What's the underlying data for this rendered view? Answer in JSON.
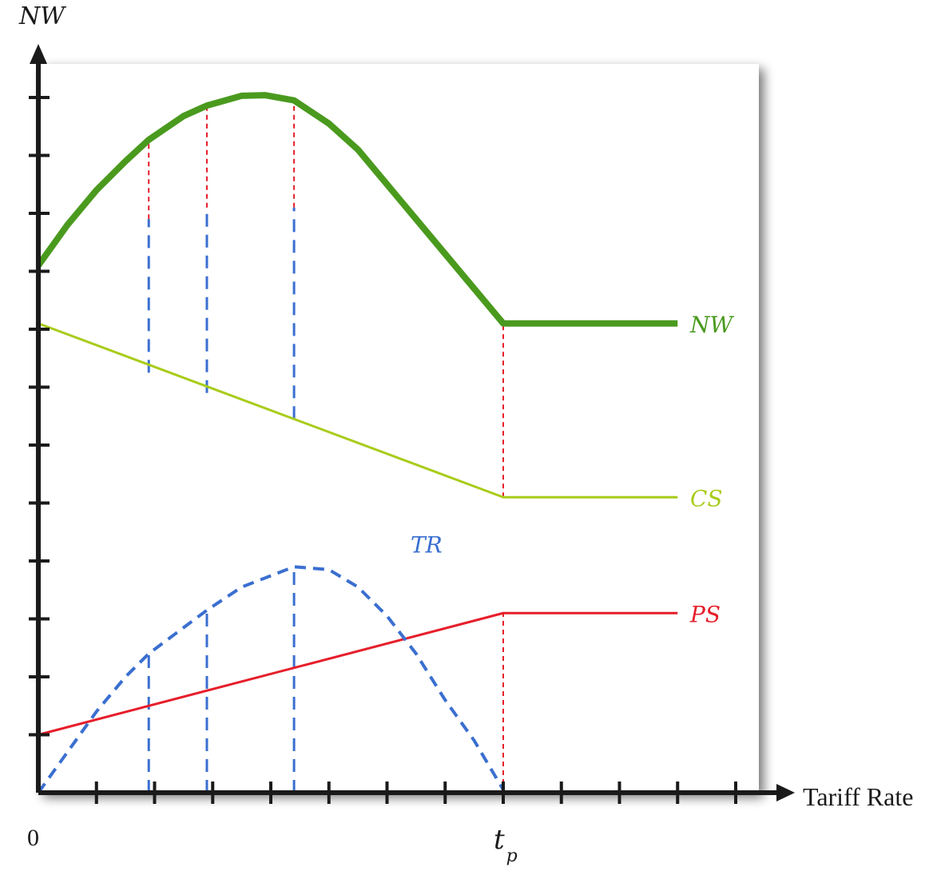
{
  "chart_data": {
    "type": "line",
    "title": "",
    "ylabel": "NW",
    "xlabel": "Tariff Rate",
    "origin_label": "0",
    "x_tick_label": {
      "value": 8,
      "text": "t",
      "subscript": "p"
    },
    "xlim": [
      0,
      12
    ],
    "ylim": [
      0,
      13
    ],
    "grid": false,
    "colors": {
      "NW": "#4a9a1e",
      "CS": "#a8cc1a",
      "PS": "#e61e2a",
      "TR": "#3a6fd0",
      "guides_red": "#e61e2a",
      "guides_blue": "#3a6fd0",
      "axis": "#1a1a1a"
    },
    "series": [
      {
        "name": "NW",
        "style": "solid-thick",
        "x": [
          0,
          0.5,
          1,
          1.5,
          1.9,
          2.5,
          2.9,
          3.5,
          3.9,
          4.4,
          5,
          5.5,
          6,
          6.5,
          7,
          7.5,
          8,
          9,
          10,
          11,
          11.0
        ],
        "y": [
          9.1,
          9.8,
          10.4,
          10.9,
          11.27,
          11.68,
          11.86,
          12.03,
          12.04,
          11.95,
          11.55,
          11.1,
          10.5,
          9.9,
          9.3,
          8.7,
          8.1,
          8.1,
          8.1,
          8.1,
          8.1
        ]
      },
      {
        "name": "CS",
        "style": "solid",
        "x": [
          0,
          8,
          11
        ],
        "y": [
          8.1,
          5.1,
          5.1
        ]
      },
      {
        "name": "PS",
        "style": "solid",
        "x": [
          0,
          8,
          11
        ],
        "y": [
          1.0,
          3.1,
          3.1
        ]
      },
      {
        "name": "TR",
        "style": "dashed",
        "x": [
          0,
          0.5,
          1,
          1.5,
          1.9,
          2.5,
          2.9,
          3.5,
          4.4,
          5,
          5.5,
          6,
          6.5,
          7,
          7.5,
          8
        ],
        "y": [
          0,
          0.7,
          1.4,
          2.0,
          2.4,
          2.85,
          3.15,
          3.55,
          3.9,
          3.85,
          3.55,
          3.05,
          2.4,
          1.6,
          0.9,
          0.05
        ]
      }
    ],
    "guides": [
      {
        "x": 0,
        "red_from": 8.1,
        "red_to": 9.1,
        "blue_from": null,
        "blue_to": null,
        "red2_from": 0,
        "red2_to": 1.0
      },
      {
        "x": 1.9,
        "red_from": 9.9,
        "red_to": 11.27,
        "blue_from": 7.25,
        "blue_to": 9.9,
        "blue2_from": 0.0,
        "blue2_to": 2.4
      },
      {
        "x": 2.9,
        "red_from": 10.1,
        "red_to": 11.86,
        "blue_from": 6.9,
        "blue_to": 10.1,
        "blue2_from": 0.0,
        "blue2_to": 3.15
      },
      {
        "x": 4.4,
        "red_from": 10.1,
        "red_to": 11.95,
        "blue_from": 6.45,
        "blue_to": 10.1,
        "blue2_from": 0.0,
        "blue2_to": 3.9
      },
      {
        "x": 8,
        "red_from": 5.1,
        "red_to": 8.1,
        "red2_from": 0,
        "red2_to": 3.1
      }
    ],
    "series_labels": [
      {
        "name": "NW",
        "text": "NW",
        "at_y": 8.1
      },
      {
        "name": "CS",
        "text": "CS",
        "at_y": 5.1
      },
      {
        "name": "PS",
        "text": "PS",
        "at_y": 3.1
      },
      {
        "name": "TR",
        "text": "TR",
        "at_y": 4.3
      }
    ]
  }
}
